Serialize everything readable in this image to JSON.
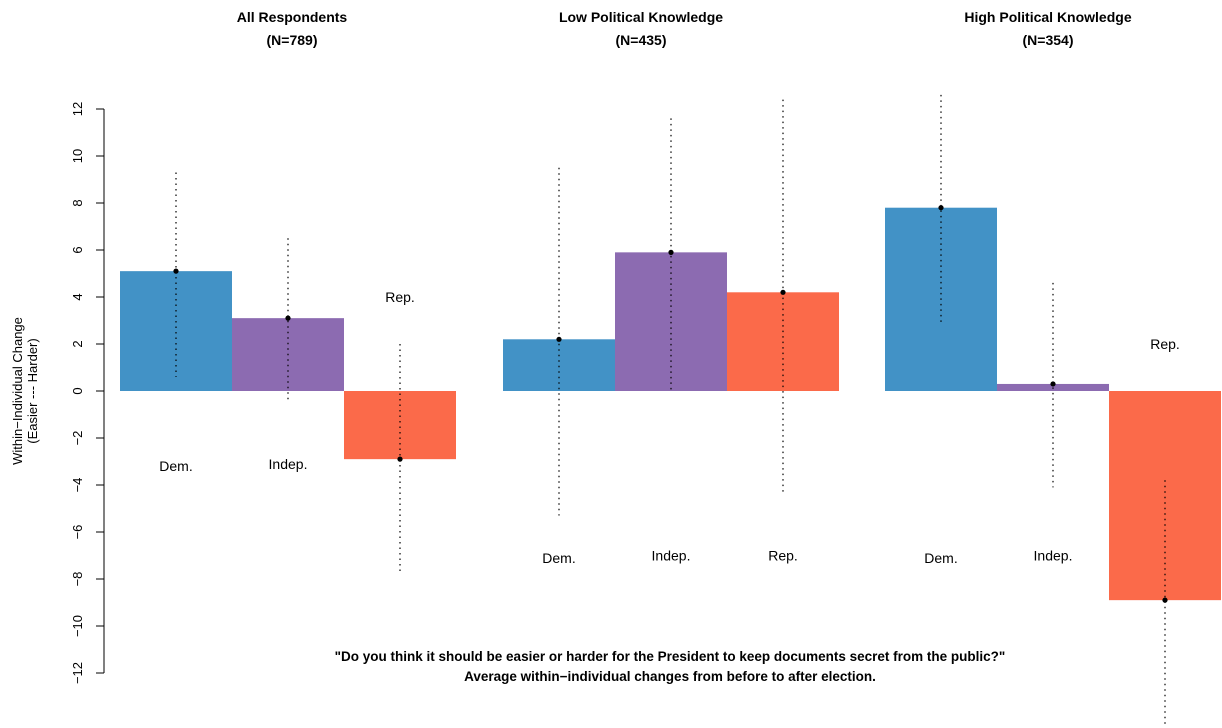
{
  "chart_data": {
    "type": "bar",
    "ylabel_lines": [
      "Within−Individual Change",
      "(Easier --- Harder)"
    ],
    "ylim": [
      -12,
      12
    ],
    "yticks": [
      -12,
      -10,
      -8,
      -6,
      -4,
      -2,
      0,
      2,
      4,
      6,
      8,
      10,
      12
    ],
    "ytick_labels": [
      "−12",
      "−10",
      "−8",
      "−6",
      "−4",
      "−2",
      "0",
      "2",
      "4",
      "6",
      "8",
      "10",
      "12"
    ],
    "categories": [
      "Dem.",
      "Indep.",
      "Rep."
    ],
    "colors": {
      "Dem.": "#4292c6",
      "Indep.": "#8c6bb1",
      "Rep.": "#fb6a4a"
    },
    "caption_lines": [
      "\"Do you think it should be easier or harder for the President to keep documents secret from the public?\"",
      "Average within−individual changes from before to after election."
    ],
    "panels": [
      {
        "title": "All Respondents",
        "subtitle": "(N=789)",
        "bars": [
          {
            "label": "Dem.",
            "value": 5.1,
            "ci": [
              0.6,
              9.3
            ],
            "label_y": -3.2
          },
          {
            "label": "Indep.",
            "value": 3.1,
            "ci": [
              -0.5,
              6.5
            ],
            "label_y": -3.1
          },
          {
            "label": "Rep.",
            "value": -2.9,
            "ci": [
              -7.8,
              2.0
            ],
            "label_y": 4.0
          }
        ]
      },
      {
        "title": "Low Political Knowledge",
        "subtitle": "(N=435)",
        "bars": [
          {
            "label": "Dem.",
            "value": 2.2,
            "ci": [
              -5.3,
              9.5
            ],
            "label_y": -7.1
          },
          {
            "label": "Indep.",
            "value": 5.9,
            "ci": [
              -0.1,
              11.6
            ],
            "label_y": -7.0
          },
          {
            "label": "Rep.",
            "value": 4.2,
            "ci": [
              -4.3,
              12.4
            ],
            "label_y": -7.0
          }
        ]
      },
      {
        "title": "High Political Knowledge",
        "subtitle": "(N=354)",
        "bars": [
          {
            "label": "Dem.",
            "value": 7.8,
            "ci": [
              2.8,
              12.6
            ],
            "label_y": -7.1
          },
          {
            "label": "Indep.",
            "value": 0.3,
            "ci": [
              -4.1,
              4.6
            ],
            "label_y": -7.0
          },
          {
            "label": "Rep.",
            "value": -8.9,
            "ci": [
              -15.0,
              -3.8
            ],
            "label_y": 2.0
          }
        ]
      }
    ],
    "grid": false,
    "legend": "none"
  }
}
